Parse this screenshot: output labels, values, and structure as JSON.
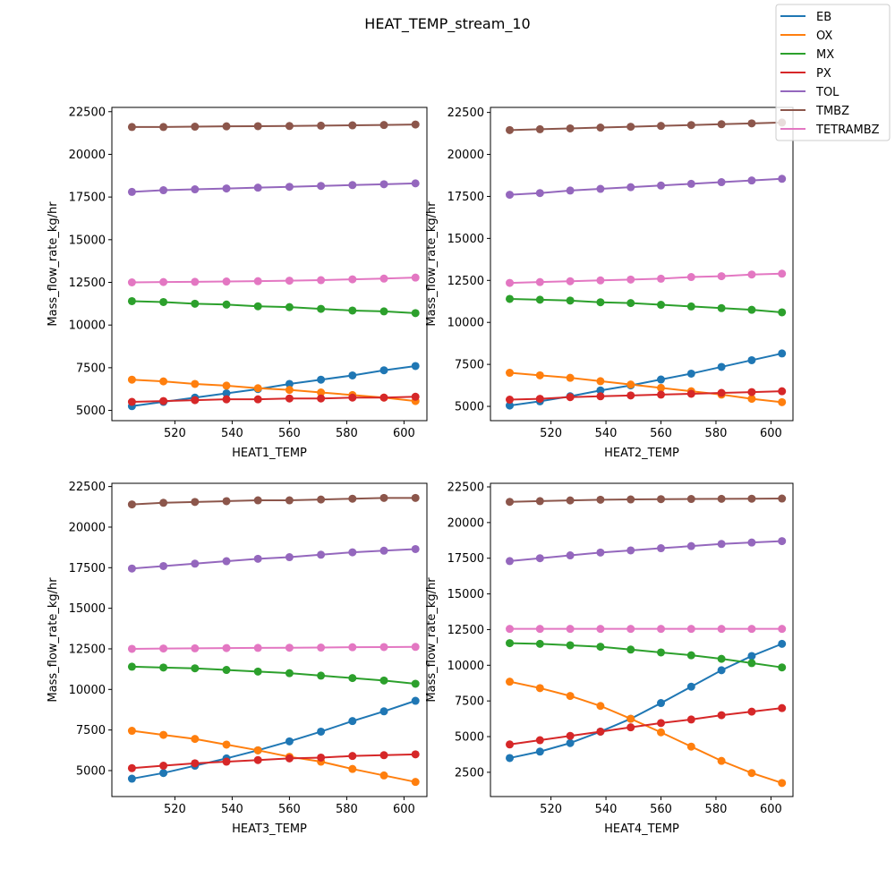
{
  "title": "HEAT_TEMP_stream_10",
  "legend": {
    "placement": "top-right",
    "entries": [
      {
        "name": "EB",
        "color": "#1f77b4"
      },
      {
        "name": "OX",
        "color": "#ff7f0e"
      },
      {
        "name": "MX",
        "color": "#2ca02c"
      },
      {
        "name": "PX",
        "color": "#d62728"
      },
      {
        "name": "TOL",
        "color": "#9467bd"
      },
      {
        "name": "TMBZ",
        "color": "#8c564b"
      },
      {
        "name": "TETRAMBZ",
        "color": "#e377c2"
      }
    ]
  },
  "chart_data": [
    {
      "type": "line",
      "xlabel": "HEAT1_TEMP",
      "ylabel": "Mass_flow_rate_kg/hr",
      "xlim": [
        498,
        608
      ],
      "ylim": [
        4400,
        22750
      ],
      "xticks": [
        520,
        540,
        560,
        580,
        600
      ],
      "yticks": [
        5000,
        7500,
        10000,
        12500,
        15000,
        17500,
        20000,
        22500
      ],
      "grid": false,
      "x": [
        505,
        516,
        527,
        538,
        549,
        560,
        571,
        582,
        593,
        604
      ],
      "series": [
        {
          "name": "EB",
          "values": [
            5250,
            5500,
            5750,
            6000,
            6250,
            6550,
            6800,
            7050,
            7350,
            7600
          ]
        },
        {
          "name": "OX",
          "values": [
            6800,
            6700,
            6550,
            6450,
            6300,
            6200,
            6050,
            5900,
            5750,
            5550
          ]
        },
        {
          "name": "MX",
          "values": [
            11400,
            11350,
            11250,
            11200,
            11100,
            11050,
            10950,
            10850,
            10800,
            10700
          ]
        },
        {
          "name": "PX",
          "values": [
            5500,
            5550,
            5600,
            5650,
            5650,
            5700,
            5700,
            5750,
            5750,
            5800
          ]
        },
        {
          "name": "TOL",
          "values": [
            17800,
            17900,
            17950,
            18000,
            18050,
            18100,
            18150,
            18200,
            18250,
            18300
          ]
        },
        {
          "name": "TMBZ",
          "values": [
            21600,
            21600,
            21620,
            21640,
            21650,
            21660,
            21680,
            21700,
            21720,
            21750
          ]
        },
        {
          "name": "TETRAMBZ",
          "values": [
            12500,
            12520,
            12530,
            12550,
            12570,
            12600,
            12630,
            12680,
            12720,
            12780
          ]
        }
      ]
    },
    {
      "type": "line",
      "xlabel": "HEAT2_TEMP",
      "ylabel": "Mass_flow_rate_kg/hr",
      "xlim": [
        498,
        608
      ],
      "ylim": [
        4150,
        22800
      ],
      "xticks": [
        520,
        540,
        560,
        580,
        600
      ],
      "yticks": [
        5000,
        7500,
        10000,
        12500,
        15000,
        17500,
        20000,
        22500
      ],
      "grid": false,
      "x": [
        505,
        516,
        527,
        538,
        549,
        560,
        571,
        582,
        593,
        604
      ],
      "series": [
        {
          "name": "EB",
          "values": [
            5050,
            5300,
            5600,
            5950,
            6250,
            6600,
            6950,
            7350,
            7750,
            8150
          ]
        },
        {
          "name": "OX",
          "values": [
            7000,
            6850,
            6700,
            6500,
            6300,
            6100,
            5900,
            5700,
            5450,
            5250
          ]
        },
        {
          "name": "MX",
          "values": [
            11400,
            11350,
            11300,
            11200,
            11150,
            11050,
            10950,
            10850,
            10750,
            10600
          ]
        },
        {
          "name": "PX",
          "values": [
            5400,
            5450,
            5550,
            5600,
            5650,
            5700,
            5750,
            5800,
            5850,
            5900
          ]
        },
        {
          "name": "TOL",
          "values": [
            17600,
            17700,
            17850,
            17950,
            18050,
            18150,
            18250,
            18350,
            18450,
            18550
          ]
        },
        {
          "name": "TMBZ",
          "values": [
            21450,
            21500,
            21550,
            21600,
            21650,
            21700,
            21750,
            21800,
            21850,
            21900
          ]
        },
        {
          "name": "TETRAMBZ",
          "values": [
            12350,
            12400,
            12450,
            12500,
            12550,
            12600,
            12700,
            12750,
            12850,
            12900
          ]
        }
      ]
    },
    {
      "type": "line",
      "xlabel": "HEAT3_TEMP",
      "ylabel": "Mass_flow_rate_kg/hr",
      "xlim": [
        498,
        608
      ],
      "ylim": [
        3400,
        22700
      ],
      "xticks": [
        520,
        540,
        560,
        580,
        600
      ],
      "yticks": [
        5000,
        7500,
        10000,
        12500,
        15000,
        17500,
        20000,
        22500
      ],
      "grid": false,
      "x": [
        505,
        516,
        527,
        538,
        549,
        560,
        571,
        582,
        593,
        604
      ],
      "series": [
        {
          "name": "EB",
          "values": [
            4500,
            4850,
            5300,
            5750,
            6250,
            6800,
            7400,
            8050,
            8650,
            9300
          ]
        },
        {
          "name": "OX",
          "values": [
            7450,
            7200,
            6950,
            6600,
            6250,
            5850,
            5550,
            5100,
            4700,
            4300
          ]
        },
        {
          "name": "MX",
          "values": [
            11400,
            11350,
            11300,
            11200,
            11100,
            11000,
            10850,
            10700,
            10550,
            10350
          ]
        },
        {
          "name": "PX",
          "values": [
            5150,
            5300,
            5450,
            5550,
            5650,
            5750,
            5800,
            5900,
            5950,
            6000
          ]
        },
        {
          "name": "TOL",
          "values": [
            17450,
            17600,
            17750,
            17900,
            18050,
            18150,
            18300,
            18450,
            18550,
            18650
          ]
        },
        {
          "name": "TMBZ",
          "values": [
            21400,
            21500,
            21550,
            21600,
            21650,
            21650,
            21700,
            21750,
            21800,
            21800
          ]
        },
        {
          "name": "TETRAMBZ",
          "values": [
            12500,
            12520,
            12530,
            12550,
            12560,
            12570,
            12580,
            12600,
            12610,
            12620
          ]
        }
      ]
    },
    {
      "type": "line",
      "xlabel": "HEAT4_TEMP",
      "ylabel": "Mass_flow_rate_kg/hr",
      "xlim": [
        498,
        608
      ],
      "ylim": [
        800,
        22750
      ],
      "xticks": [
        520,
        540,
        560,
        580,
        600
      ],
      "yticks": [
        2500,
        5000,
        7500,
        10000,
        12500,
        15000,
        17500,
        20000,
        22500
      ],
      "grid": false,
      "x": [
        505,
        516,
        527,
        538,
        549,
        560,
        571,
        582,
        593,
        604
      ],
      "series": [
        {
          "name": "EB",
          "values": [
            3500,
            3950,
            4550,
            5350,
            6250,
            7350,
            8500,
            9650,
            10650,
            11500
          ]
        },
        {
          "name": "OX",
          "values": [
            8850,
            8400,
            7850,
            7150,
            6250,
            5300,
            4300,
            3300,
            2450,
            1750
          ]
        },
        {
          "name": "MX",
          "values": [
            11550,
            11500,
            11400,
            11300,
            11100,
            10900,
            10700,
            10450,
            10150,
            9850
          ]
        },
        {
          "name": "PX",
          "values": [
            4450,
            4750,
            5050,
            5350,
            5650,
            5950,
            6200,
            6500,
            6750,
            7000
          ]
        },
        {
          "name": "TOL",
          "values": [
            17300,
            17500,
            17700,
            17900,
            18050,
            18200,
            18350,
            18500,
            18600,
            18700
          ]
        },
        {
          "name": "TMBZ",
          "values": [
            21450,
            21500,
            21550,
            21600,
            21620,
            21640,
            21650,
            21660,
            21670,
            21680
          ]
        },
        {
          "name": "TETRAMBZ",
          "values": [
            12550,
            12550,
            12550,
            12550,
            12550,
            12550,
            12550,
            12550,
            12550,
            12550
          ]
        }
      ]
    }
  ]
}
